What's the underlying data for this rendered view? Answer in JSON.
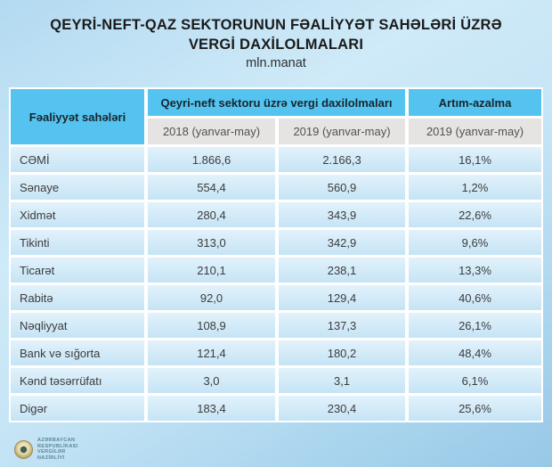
{
  "title": {
    "line1": "QEYRİ-NEFT-QAZ SEKTORUNUN FƏALİYYƏT SAHƏLƏRİ ÜZRƏ",
    "line2": "VERGİ DAXİLOLMALARI",
    "unit": "mln.manat"
  },
  "table": {
    "col_activity": "Fəaliyyət sahələri",
    "group_header": "Qeyri-neft sektoru üzrə vergi daxilolmaları",
    "col_growth": "Artım-azalma",
    "sub_2018": "2018 (yanvar-may)",
    "sub_2019": "2019 (yanvar-may)",
    "sub_growth": "2019 (yanvar-may)",
    "rows": [
      {
        "label": "CƏMİ",
        "y2018": "1.866,6",
        "y2019": "2.166,3",
        "growth": "16,1%"
      },
      {
        "label": "Sənaye",
        "y2018": "554,4",
        "y2019": "560,9",
        "growth": "1,2%"
      },
      {
        "label": "Xidmət",
        "y2018": "280,4",
        "y2019": "343,9",
        "growth": "22,6%"
      },
      {
        "label": "Tikinti",
        "y2018": "313,0",
        "y2019": "342,9",
        "growth": "9,6%"
      },
      {
        "label": "Ticarət",
        "y2018": "210,1",
        "y2019": "238,1",
        "growth": "13,3%"
      },
      {
        "label": "Rabitə",
        "y2018": "92,0",
        "y2019": "129,4",
        "growth": "40,6%"
      },
      {
        "label": "Nəqliyyat",
        "y2018": "108,9",
        "y2019": "137,3",
        "growth": "26,1%"
      },
      {
        "label": "Bank və sığorta",
        "y2018": "121,4",
        "y2019": "180,2",
        "growth": "48,4%"
      },
      {
        "label": "Kənd təsərrüfatı",
        "y2018": "3,0",
        "y2019": "3,1",
        "growth": "6,1%"
      },
      {
        "label": "Digər",
        "y2018": "183,4",
        "y2019": "230,4",
        "growth": "25,6%"
      }
    ]
  },
  "footer": {
    "logo_lines": [
      "AZƏRBAYCAN",
      "RESPUBLİKASI",
      "VERGİLƏR",
      "NAZİRLİYİ"
    ]
  },
  "colors": {
    "header_blue": "#55c3ef",
    "subheader_gray": "#e6e4e2",
    "row_blue": "#d2eaf8",
    "background_blue": "#a7d3ed"
  },
  "chart_data": {
    "type": "table",
    "title": "QEYRİ-NEFT-QAZ SEKTORUNUN FƏALİYYƏT SAHƏLƏRİ ÜZRƏ VERGİ DAXİLOLMALARI",
    "unit": "mln.manat",
    "columns": [
      "Fəaliyyət sahələri",
      "2018 (yanvar-may)",
      "2019 (yanvar-may)",
      "Artım-azalma 2019 (yanvar-may)"
    ],
    "rows": [
      [
        "CƏMİ",
        1866.6,
        2166.3,
        16.1
      ],
      [
        "Sənaye",
        554.4,
        560.9,
        1.2
      ],
      [
        "Xidmət",
        280.4,
        343.9,
        22.6
      ],
      [
        "Tikinti",
        313.0,
        342.9,
        9.6
      ],
      [
        "Ticarət",
        210.1,
        238.1,
        13.3
      ],
      [
        "Rabitə",
        92.0,
        129.4,
        40.6
      ],
      [
        "Nəqliyyat",
        108.9,
        137.3,
        26.1
      ],
      [
        "Bank və sığorta",
        121.4,
        180.2,
        48.4
      ],
      [
        "Kənd təsərrüfatı",
        3.0,
        3.1,
        6.1
      ],
      [
        "Digər",
        183.4,
        230.4,
        25.6
      ]
    ]
  }
}
